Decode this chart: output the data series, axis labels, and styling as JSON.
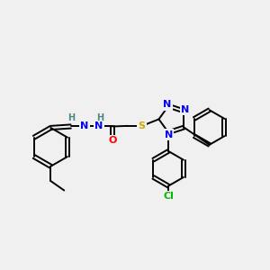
{
  "bg_color": "#f0f0f0",
  "bond_color": "#000000",
  "bond_width": 1.4,
  "atom_colors": {
    "N": "#0000ff",
    "O": "#ff0000",
    "S": "#ccaa00",
    "Cl": "#00bb00",
    "H": "#4a8888",
    "C": "#000000"
  },
  "font_size": 8,
  "fig_width": 3.0,
  "fig_height": 3.0,
  "dpi": 100
}
